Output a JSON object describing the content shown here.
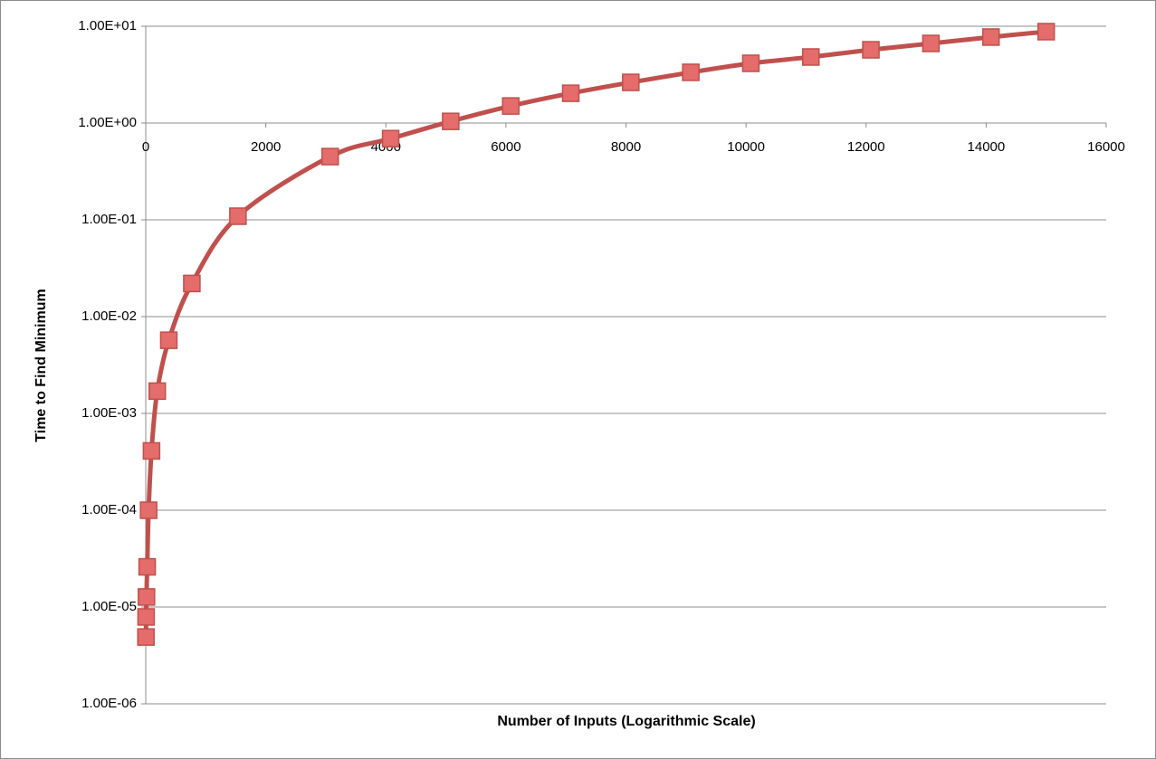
{
  "chart_data": {
    "type": "line",
    "x_label": "Number of Inputs (Logarithmic Scale)",
    "y_label": "Time to Find Minimum",
    "y_log": true,
    "grid": true,
    "x_axis_at": 1,
    "xlim": [
      0,
      16000
    ],
    "xticks": [
      0,
      2000,
      4000,
      6000,
      8000,
      10000,
      12000,
      14000,
      16000
    ],
    "ylim": [
      1e-06,
      10
    ],
    "yticks": [
      {
        "value": 1e-06,
        "label": "1.00E-06"
      },
      {
        "value": 1e-05,
        "label": "1.00E-05"
      },
      {
        "value": 0.0001,
        "label": "1.00E-04"
      },
      {
        "value": 0.001,
        "label": "1.00E-03"
      },
      {
        "value": 0.01,
        "label": "1.00E-02"
      },
      {
        "value": 0.1,
        "label": "1.00E-01"
      },
      {
        "value": 1,
        "label": "1.00E+00"
      },
      {
        "value": 10,
        "label": "1.00E+01"
      }
    ],
    "series": [
      {
        "color": "#c0504d",
        "marker_color": "#e46c6a",
        "x": [
          3,
          6,
          12,
          24,
          48,
          96,
          192,
          384,
          768,
          1536,
          3072,
          4080,
          5080,
          6080,
          7080,
          8080,
          9080,
          10080,
          11080,
          12080,
          13080,
          14080,
          15000
        ],
        "values": [
          4.9e-06,
          7.9e-06,
          1.27e-05,
          2.6e-05,
          0.0001,
          0.00041,
          0.0017,
          0.0057,
          0.022,
          0.109,
          0.45,
          0.69,
          1.04,
          1.5,
          2.03,
          2.63,
          3.34,
          4.14,
          4.81,
          5.71,
          6.64,
          7.73,
          8.79
        ]
      }
    ]
  }
}
